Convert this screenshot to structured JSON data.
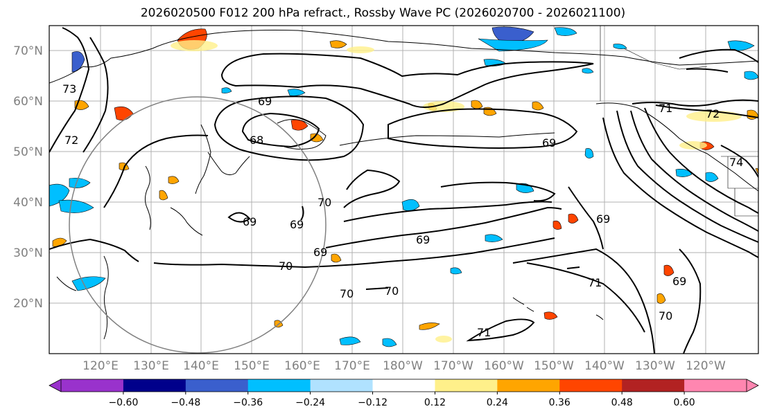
{
  "title": "2026020500 F012 200 hPa refract., Rossby Wave PC (2026020700 - 2026021100)",
  "lat_labels": [
    "70°N",
    "60°N",
    "50°N",
    "40°N",
    "30°N",
    "20°N"
  ],
  "lon_labels": [
    "120°E",
    "130°E",
    "140°E",
    "150°E",
    "160°E",
    "170°E",
    "180°W",
    "170°W",
    "160°W",
    "150°W",
    "140°W",
    "130°W",
    "120°W"
  ],
  "colorbar": {
    "ticks": [
      "−0.60",
      "−0.48",
      "−0.36",
      "−0.24",
      "−0.12",
      "0.12",
      "0.24",
      "0.36",
      "0.48",
      "0.60"
    ],
    "colors": [
      "#9932cc",
      "#00008b",
      "#3a5fcd",
      "#00bfff",
      "#b0e2ff",
      "#ffffff",
      "#fff08a",
      "#ffa500",
      "#ff4500",
      "#b22222",
      "#ff86b0"
    ]
  },
  "contour_labels": [
    "69",
    "68",
    "70",
    "69",
    "69",
    "69",
    "70",
    "70",
    "70",
    "69",
    "69",
    "71",
    "71",
    "72",
    "72",
    "73",
    "74",
    "69",
    "69",
    "71",
    "70"
  ]
}
